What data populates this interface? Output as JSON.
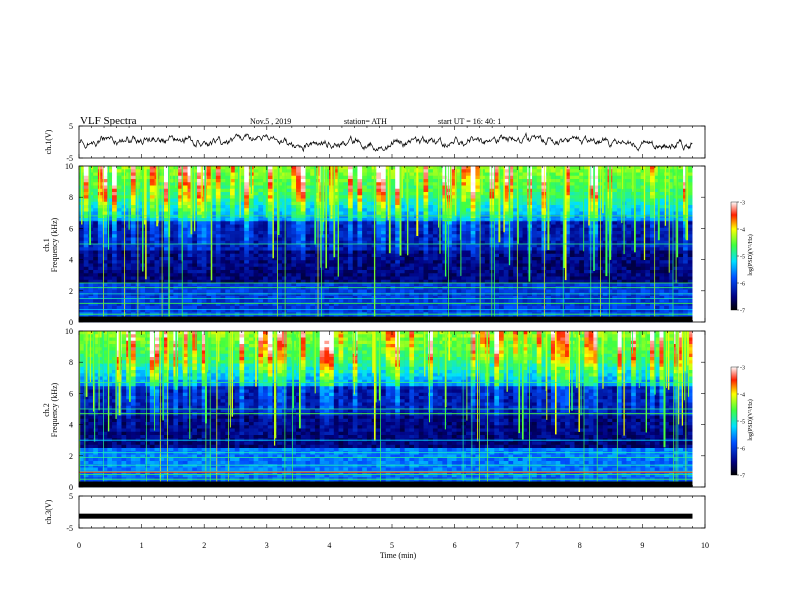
{
  "header": {
    "title": "VLF  Spectra",
    "date": "Nov.5  , 2019",
    "station": "station= ATH",
    "start": "start  UT  =    16: 40: 1"
  },
  "chart_data": [
    {
      "type": "line",
      "panel": "ch1-waveform",
      "ylabel": "ch.1(V)",
      "ylim": [
        -5,
        5
      ],
      "yticks": [
        "5",
        "-5"
      ],
      "xlim": [
        0,
        10
      ],
      "x_end": 9.8,
      "approx_level": 0
    },
    {
      "type": "heatmap",
      "panel": "ch1-spectrogram",
      "ylabel": "ch.1",
      "ylabel2": "Frequency  (kHz)",
      "ylim": [
        0,
        10
      ],
      "yticks": [
        "0",
        "2",
        "4",
        "6",
        "8",
        "10"
      ],
      "xlim": [
        0,
        10
      ],
      "x_end": 9.8,
      "colorbar": {
        "label": "log(PSD)(V²/Hz)",
        "range": [
          -7,
          -3
        ],
        "ticks": [
          "-3",
          "-4",
          "-5",
          "-6",
          "-7"
        ]
      }
    },
    {
      "type": "heatmap",
      "panel": "ch2-spectrogram",
      "ylabel": "ch.2",
      "ylabel2": "Frequency  (kHz)",
      "ylim": [
        0,
        10
      ],
      "yticks": [
        "0",
        "2",
        "4",
        "6",
        "8",
        "10"
      ],
      "xlim": [
        0,
        10
      ],
      "x_end": 9.8,
      "colorbar": {
        "label": "log(PSD)(V²/Hz)",
        "range": [
          -7,
          -3
        ],
        "ticks": [
          "-3",
          "-4",
          "-5",
          "-6",
          "-7"
        ]
      }
    },
    {
      "type": "line",
      "panel": "ch3-waveform",
      "ylabel": "ch.3(V)",
      "ylim": [
        -5,
        5
      ],
      "yticks": [
        "5",
        "-5"
      ],
      "xlim": [
        0,
        10
      ],
      "x_end": 9.8,
      "approx_level": -1.3,
      "xlabel": "Time  (min)",
      "xticks": [
        "0",
        "1",
        "2",
        "3",
        "4",
        "5",
        "6",
        "7",
        "8",
        "9",
        "10"
      ]
    }
  ]
}
